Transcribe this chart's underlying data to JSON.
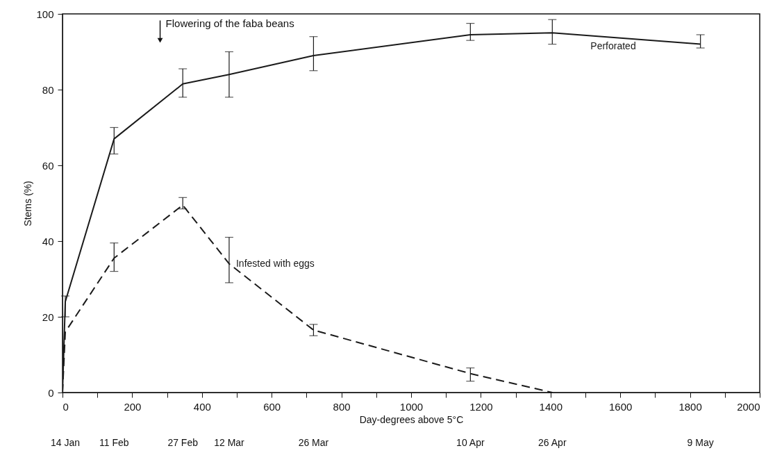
{
  "chart_data": {
    "type": "line",
    "xlabel": "Day-degrees above 5°C",
    "ylabel": "Stems (%)",
    "xlim": [
      0,
      2000
    ],
    "ylim": [
      0,
      100
    ],
    "xticks": [
      0,
      {
        "value": 100,
        "label": null
      },
      200,
      {
        "value": 300,
        "label": null
      },
      400,
      {
        "value": 500,
        "label": null
      },
      600,
      {
        "value": 700,
        "label": null
      },
      800,
      {
        "value": 900,
        "label": null
      },
      1000,
      {
        "value": 1100,
        "label": null
      },
      1200,
      {
        "value": 1300,
        "label": null
      },
      1400,
      {
        "value": 1500,
        "label": null
      },
      1600,
      {
        "value": 1700,
        "label": null
      },
      1800,
      {
        "value": 1900,
        "label": null
      },
      2000
    ],
    "yticks": [
      0,
      20,
      40,
      60,
      80,
      100
    ],
    "grid": false,
    "legend": false,
    "marker": "none",
    "series": [
      {
        "name": "Perforated",
        "color": "#1a1a1a",
        "line_style": "solid",
        "x": [
          0,
          8,
          148,
          345,
          478,
          720,
          1170,
          1405,
          1830
        ],
        "values": [
          0,
          24,
          67,
          81.5,
          84,
          89,
          94.5,
          95,
          92
        ],
        "errors": [
          null,
          [
            20,
            25.5
          ],
          [
            63,
            70
          ],
          [
            78,
            85.5
          ],
          [
            78,
            90
          ],
          [
            85,
            94
          ],
          [
            93,
            97.5
          ],
          [
            92,
            98.5
          ],
          [
            91,
            94.5
          ]
        ]
      },
      {
        "name": "Infested with eggs",
        "color": "#1a1a1a",
        "line_style": "dashed",
        "x": [
          0,
          8,
          148,
          345,
          478,
          720,
          1170,
          1405
        ],
        "values": [
          0,
          16,
          35.5,
          49.5,
          34,
          16.5,
          5,
          0
        ],
        "errors": [
          null,
          null,
          [
            32,
            39.5
          ],
          [
            48.5,
            51.5
          ],
          [
            29,
            41
          ],
          [
            15,
            18
          ],
          [
            3,
            6.5
          ],
          null
        ]
      }
    ],
    "annotations": [
      {
        "text": "Flowering of the faba beans",
        "x": 280,
        "y": 93
      },
      "14 Jan",
      "11 Feb",
      "27 Feb",
      "12 Mar",
      "26 Mar",
      "10 Apr",
      "26 Apr",
      "9 May"
    ]
  }
}
